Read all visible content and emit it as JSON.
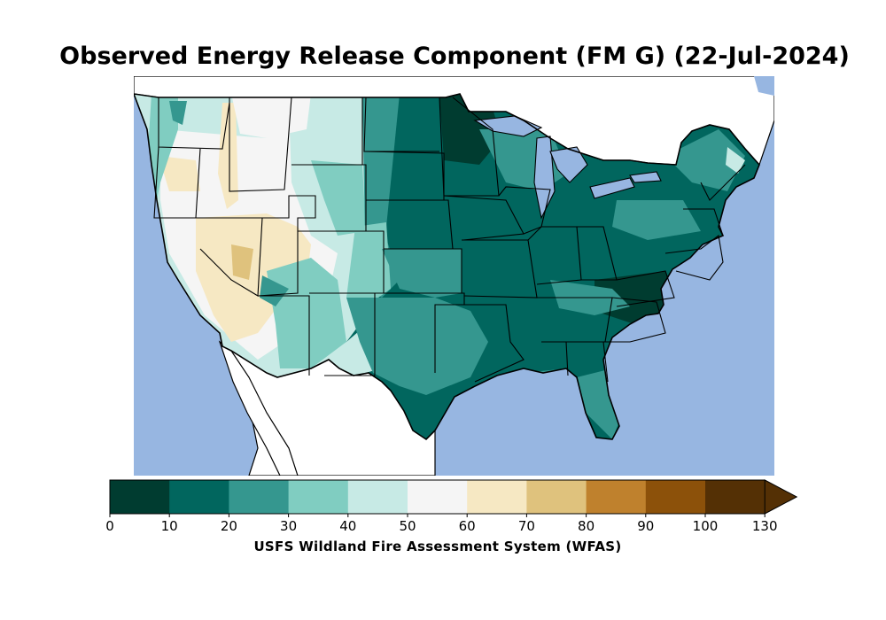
{
  "title": "Observed Energy Release Component (FM G) (22-Jul-2024)",
  "colorbar": {
    "label": "USFS Wildland Fire Assessment System (WFAS)",
    "ticks": [
      "0",
      "10",
      "20",
      "30",
      "40",
      "50",
      "60",
      "70",
      "80",
      "90",
      "100",
      "130"
    ],
    "colors": [
      "#003c30",
      "#01665e",
      "#35978f",
      "#80cdc1",
      "#c7eae5",
      "#f5f5f5",
      "#f6e8c3",
      "#dfc27d",
      "#bf812d",
      "#8c510a",
      "#543005"
    ],
    "extend": "max"
  },
  "colors": {
    "ocean": "#97b6e1",
    "land_outside": "#ffffff",
    "boundary": "#000000"
  }
}
